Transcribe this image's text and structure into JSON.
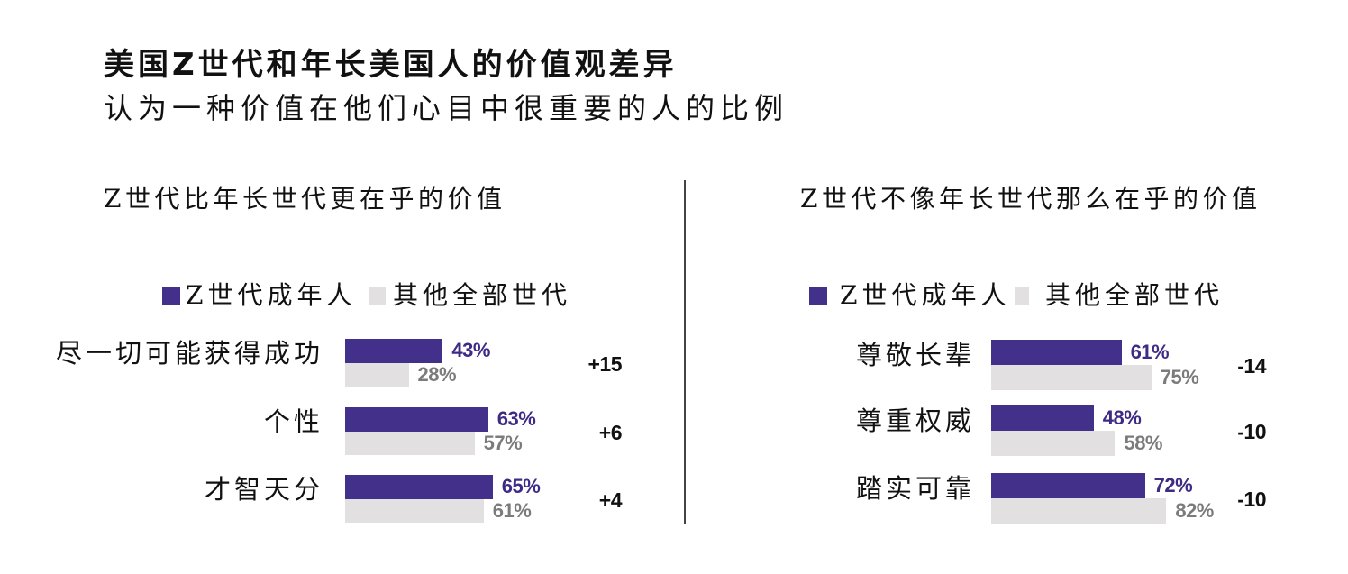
{
  "title": "美国Z世代和年长美国人的价值观差异",
  "subtitle": "认为一种价值在他们心目中很重要的人的比例",
  "colors": {
    "z_generation": "#43308a",
    "other_generations": "#e2e0e1",
    "z_generation_value_text": "#3f2b86",
    "other_generations_value_text": "#7b7b7b",
    "difference_text": "#111111"
  },
  "legend_placement": "top",
  "chart_data": [
    {
      "type": "bar",
      "orientation": "horizontal",
      "title": "Z世代比年长世代更在乎的价值",
      "categories": [
        "尽一切可能获得成功",
        "个性",
        "才智天分"
      ],
      "series": [
        {
          "name": "Z世代成年人",
          "values": [
            43,
            63,
            65
          ],
          "labels": [
            "43%",
            "63%",
            "65%"
          ]
        },
        {
          "name": "其他全部世代",
          "values": [
            28,
            57,
            61
          ],
          "labels": [
            "28%",
            "57%",
            "61%"
          ]
        }
      ],
      "differences": [
        "+15",
        "+6",
        "+4"
      ],
      "unit": "%"
    },
    {
      "type": "bar",
      "orientation": "horizontal",
      "title": "Z世代不像年长世代那么在乎的价值",
      "categories": [
        "尊敬长辈",
        "尊重权威",
        "踏实可靠"
      ],
      "series": [
        {
          "name": "Z世代成年人",
          "values": [
            61,
            48,
            72
          ],
          "labels": [
            "61%",
            "48%",
            "72%"
          ]
        },
        {
          "name": "其他全部世代",
          "values": [
            75,
            58,
            82
          ],
          "labels": [
            "75%",
            "58%",
            "82%"
          ]
        }
      ],
      "differences": [
        "-14",
        "-10",
        "-10"
      ],
      "unit": "%"
    }
  ]
}
